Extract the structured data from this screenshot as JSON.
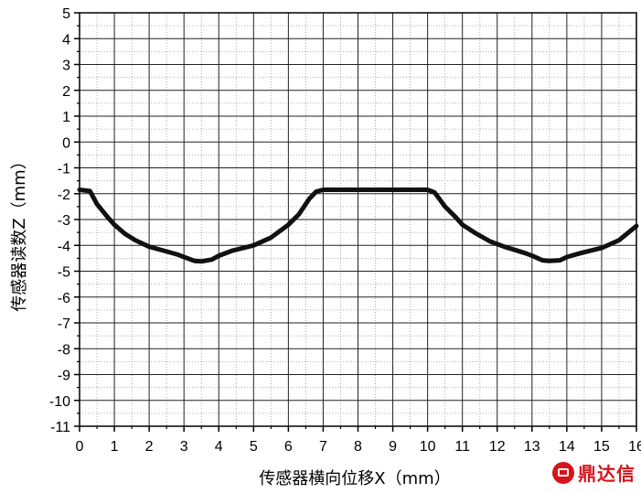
{
  "chart_data": {
    "type": "line",
    "title": "",
    "xlabel": "传感器横向位移X（mm）",
    "ylabel": "传感器读数Z（mm）",
    "xlim": [
      0,
      16
    ],
    "ylim": [
      -11,
      5
    ],
    "x_ticks": [
      0,
      1,
      2,
      3,
      4,
      5,
      6,
      7,
      8,
      9,
      10,
      11,
      12,
      13,
      14,
      15,
      16
    ],
    "y_ticks": [
      5,
      4,
      3,
      2,
      1,
      0,
      -1,
      -2,
      -3,
      -4,
      -5,
      -6,
      -7,
      -8,
      -9,
      -10,
      -11
    ],
    "grid": true,
    "minor_grid": true,
    "series": [
      {
        "color": "#111111",
        "x": [
          0.0,
          0.3,
          0.5,
          0.8,
          1.0,
          1.3,
          1.6,
          2.0,
          2.4,
          2.8,
          3.0,
          3.3,
          3.5,
          3.8,
          4.0,
          4.4,
          5.0,
          5.5,
          6.0,
          6.3,
          6.6,
          6.8,
          7.0,
          8.0,
          9.0,
          10.0,
          10.2,
          10.5,
          10.8,
          11.0,
          11.4,
          11.8,
          12.2,
          12.8,
          13.0,
          13.3,
          13.5,
          13.8,
          14.0,
          14.4,
          15.0,
          15.5,
          16.0
        ],
        "y": [
          -1.85,
          -1.9,
          -2.4,
          -2.9,
          -3.2,
          -3.55,
          -3.8,
          -4.05,
          -4.2,
          -4.35,
          -4.45,
          -4.6,
          -4.62,
          -4.55,
          -4.4,
          -4.2,
          -4.0,
          -3.7,
          -3.2,
          -2.8,
          -2.2,
          -1.92,
          -1.85,
          -1.85,
          -1.85,
          -1.85,
          -1.95,
          -2.5,
          -2.9,
          -3.2,
          -3.55,
          -3.85,
          -4.05,
          -4.3,
          -4.4,
          -4.58,
          -4.6,
          -4.58,
          -4.45,
          -4.3,
          -4.1,
          -3.8,
          -3.25
        ]
      }
    ]
  },
  "watermark": {
    "text": "鼎达信"
  }
}
